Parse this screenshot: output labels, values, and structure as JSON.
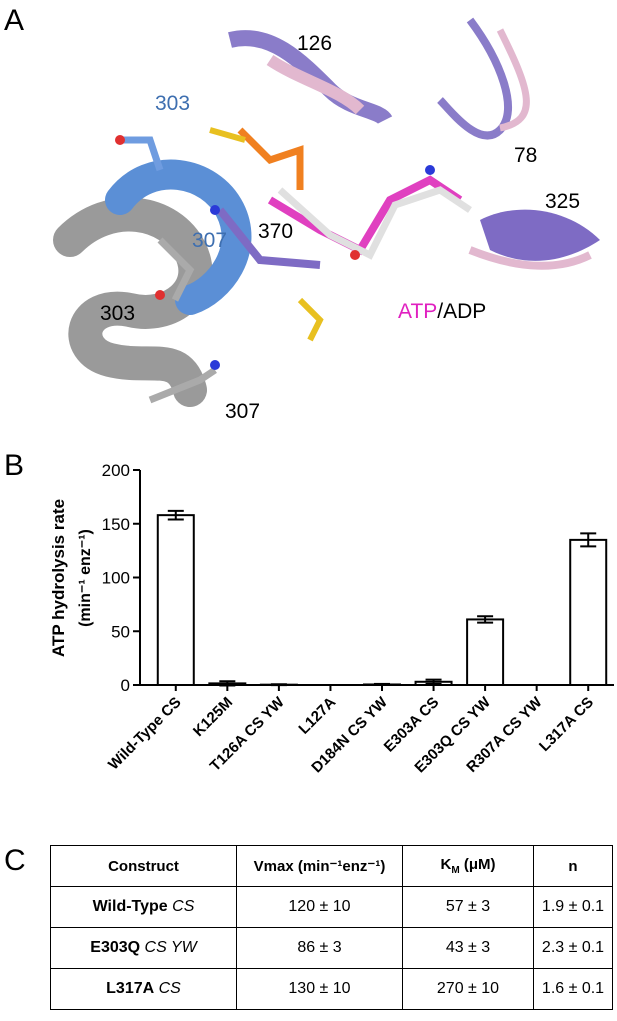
{
  "panel_labels": [
    "A",
    "B",
    "C"
  ],
  "structure": {
    "labels": [
      "126",
      "303",
      "307",
      "370",
      "78",
      "325",
      "303",
      "307"
    ],
    "ligand_label": {
      "atp": "ATP",
      "adp": "/ADP"
    }
  },
  "chart_data": {
    "type": "bar",
    "ylabel": [
      "ATP hydrolysis rate",
      "(min⁻¹ enz⁻¹)"
    ],
    "categories": [
      "Wild-Type CS",
      "K125M",
      "T126A CS YW",
      "L127A",
      "D184N CS YW",
      "E303A CS",
      "E303Q CS YW",
      "R307A CS YW",
      "L317A CS"
    ],
    "values": [
      158,
      1.5,
      0.3,
      0,
      0.5,
      3,
      61,
      0,
      135
    ],
    "errors": [
      4,
      2,
      0.4,
      0,
      0.5,
      2,
      3,
      0,
      6
    ],
    "color": "#ffffff",
    "ylim": [
      0,
      200
    ],
    "yticks": [
      0,
      50,
      100,
      150,
      200
    ],
    "grid": false
  },
  "table": {
    "header": [
      "Construct",
      "Vmax (min⁻¹enz⁻¹)",
      {
        "text": "K",
        "subscript": "M",
        "unit": " (μM)"
      },
      "n"
    ],
    "rows": [
      [
        {
          "name": "Wild-Type",
          "variant": "CS"
        },
        "120 ± 10",
        "57 ± 3",
        "1.9 ± 0.1"
      ],
      [
        {
          "name": "E303Q",
          "variant": "CS YW"
        },
        "86 ± 3",
        "43 ± 3",
        "2.3 ± 0.1"
      ],
      [
        {
          "name": "L317A",
          "variant": "CS"
        },
        "130 ± 10",
        "270 ± 10",
        "1.6 ± 0.1"
      ]
    ]
  }
}
